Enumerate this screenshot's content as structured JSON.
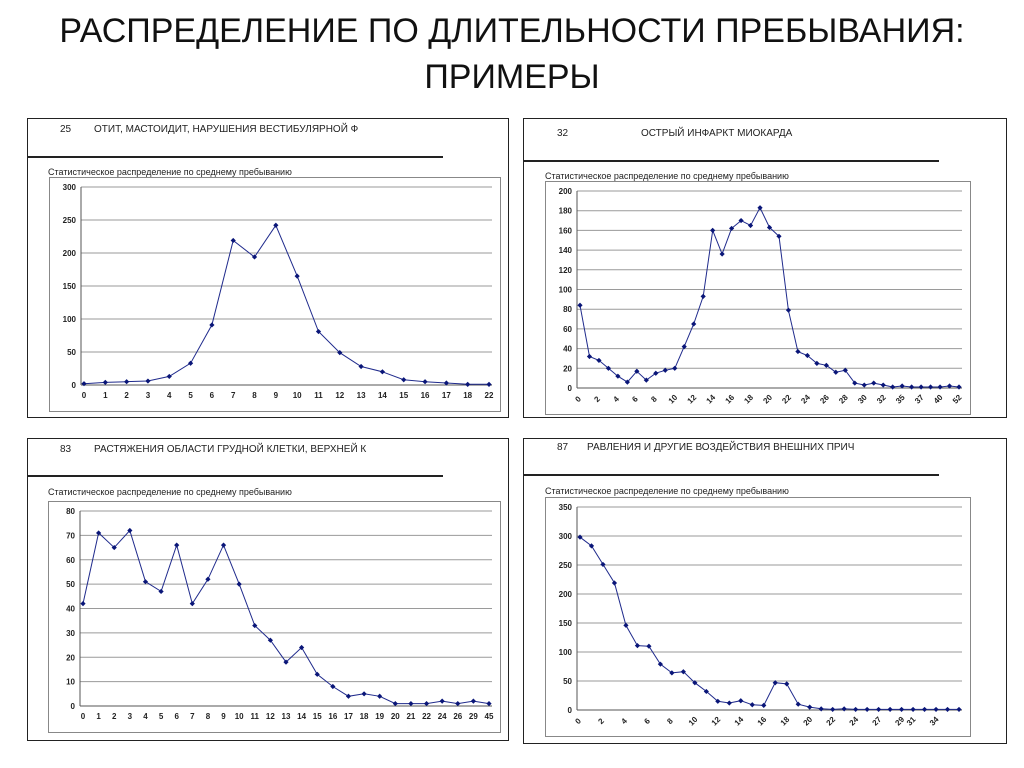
{
  "slide": {
    "title_line1": "РАСПРЕДЕЛЕНИЕ ПО ДЛИТЕЛЬНОСТИ ПРЕБЫВАНИЯ:",
    "title_line2": "ПРИМЕРЫ"
  },
  "panels": [
    {
      "code": "25",
      "title": "ОТИТ, МАСТОИДИТ, НАРУШЕНИЯ ВЕСТИБУЛЯРНОЙ Ф",
      "subtitle": "Статистическое распределение по среднему пребыванию"
    },
    {
      "code": "32",
      "title": "ОСТРЫЙ ИНФАРКТ МИОКАРДА",
      "subtitle": "Статистическое распределение по среднему пребыванию"
    },
    {
      "code": "83",
      "title": "РАСТЯЖЕНИЯ ОБЛАСТИ ГРУДНОЙ КЛЕТКИ, ВЕРХНЕЙ К",
      "subtitle": "Статистическое распределение по среднему пребыванию"
    },
    {
      "code": "87",
      "title": "РАВЛЕНИЯ И ДРУГИЕ ВОЗДЕЙСТВИЯ ВНЕШНИХ ПРИЧ",
      "subtitle": "Статистическое распределение по среднему пребыванию"
    }
  ],
  "chart_data": [
    {
      "type": "line",
      "title": "25 ОТИТ, МАСТОИДИТ, НАРУШЕНИЯ ВЕСТИБУЛЯРНОЙ Ф",
      "subtitle": "Статистическое распределение по среднему пребыванию",
      "categories": [
        "0",
        "1",
        "2",
        "3",
        "4",
        "5",
        "6",
        "7",
        "8",
        "9",
        "10",
        "11",
        "12",
        "13",
        "14",
        "15",
        "16",
        "17",
        "18",
        "22"
      ],
      "ylim": [
        0,
        300
      ],
      "yticks": [
        0,
        50,
        100,
        150,
        200,
        250,
        300
      ],
      "grid": true,
      "series": [
        {
          "values": [
            2,
            4,
            5,
            6,
            13,
            33,
            91,
            219,
            194,
            242,
            165,
            81,
            49,
            28,
            20,
            8,
            5,
            3,
            1,
            1
          ]
        }
      ],
      "marker_color": "#0a1678",
      "line_color": "#1f2a8c"
    },
    {
      "type": "line",
      "title": "32 ОСТРЫЙ ИНФАРКТ МИОКАРДА",
      "subtitle": "Статистическое распределение по среднему пребыванию",
      "categories": [
        "0",
        "1",
        "2",
        "3",
        "4",
        "5",
        "6",
        "7",
        "8",
        "9",
        "10",
        "11",
        "12",
        "13",
        "14",
        "15",
        "16",
        "17",
        "18",
        "19",
        "20",
        "21",
        "22",
        "23",
        "24",
        "25",
        "26",
        "27",
        "28",
        "29",
        "30",
        "31",
        "32",
        "33",
        "35",
        "36",
        "37",
        "38",
        "40",
        "41",
        "52"
      ],
      "xtick_labels": [
        "0",
        "2",
        "4",
        "6",
        "8",
        "10",
        "12",
        "14",
        "16",
        "18",
        "20",
        "22",
        "24",
        "26",
        "28",
        "30",
        "32",
        "35",
        "37",
        "40",
        "52"
      ],
      "ylim": [
        0,
        200
      ],
      "yticks": [
        0,
        20,
        40,
        60,
        80,
        100,
        120,
        140,
        160,
        180,
        200
      ],
      "grid": true,
      "series": [
        {
          "values": [
            84,
            32,
            28,
            20,
            12,
            6,
            17,
            8,
            15,
            18,
            20,
            42,
            65,
            93,
            160,
            136,
            162,
            170,
            165,
            183,
            163,
            154,
            79,
            37,
            33,
            25,
            23,
            16,
            18,
            5,
            3,
            5,
            3,
            1,
            2,
            1,
            1,
            1,
            1,
            2,
            1
          ]
        }
      ],
      "marker_color": "#0a1678",
      "line_color": "#1f2a8c"
    },
    {
      "type": "line",
      "title": "83 РАСТЯЖЕНИЯ ОБЛАСТИ ГРУДНОЙ КЛЕТКИ, ВЕРХНЕЙ К",
      "subtitle": "Статистическое распределение по среднему пребыванию",
      "categories": [
        "0",
        "1",
        "2",
        "3",
        "4",
        "5",
        "6",
        "7",
        "8",
        "9",
        "10",
        "11",
        "12",
        "13",
        "14",
        "15",
        "16",
        "17",
        "18",
        "19",
        "20",
        "21",
        "22",
        "24",
        "26",
        "29",
        "45"
      ],
      "ylim": [
        0,
        80
      ],
      "yticks": [
        0,
        10,
        20,
        30,
        40,
        50,
        60,
        70,
        80
      ],
      "grid": true,
      "series": [
        {
          "values": [
            42,
            71,
            65,
            72,
            51,
            47,
            66,
            42,
            52,
            66,
            50,
            33,
            27,
            18,
            24,
            13,
            8,
            4,
            5,
            4,
            1,
            1,
            1,
            2,
            1,
            2,
            1
          ]
        }
      ],
      "marker_color": "#0a1678",
      "line_color": "#1f2a8c"
    },
    {
      "type": "line",
      "title": "87 РАВЛЕНИЯ И ДРУГИЕ ВОЗДЕЙСТВИЯ ВНЕШНИХ ПРИЧ",
      "subtitle": "Статистическое распределение по среднему пребыванию",
      "categories": [
        "0",
        "1",
        "2",
        "3",
        "4",
        "5",
        "6",
        "7",
        "8",
        "9",
        "10",
        "11",
        "12",
        "13",
        "14",
        "15",
        "16",
        "17",
        "18",
        "19",
        "20",
        "21",
        "22",
        "23",
        "24",
        "25",
        "27",
        "28",
        "29",
        "31",
        "32",
        "34",
        "35",
        "38"
      ],
      "xtick_labels": [
        "0",
        "2",
        "4",
        "6",
        "8",
        "10",
        "12",
        "14",
        "16",
        "18",
        "20",
        "22",
        "24",
        "27",
        "29",
        "31",
        "34"
      ],
      "ylim": [
        0,
        350
      ],
      "yticks": [
        0,
        50,
        100,
        150,
        200,
        250,
        300,
        350
      ],
      "grid": true,
      "series": [
        {
          "values": [
            298,
            283,
            251,
            219,
            146,
            111,
            110,
            79,
            64,
            66,
            47,
            32,
            15,
            12,
            16,
            9,
            8,
            47,
            45,
            10,
            5,
            2,
            1,
            2,
            1,
            1,
            1,
            1,
            1,
            1,
            1,
            1,
            1,
            1
          ]
        }
      ],
      "marker_color": "#0a1678",
      "line_color": "#1f2a8c"
    }
  ]
}
